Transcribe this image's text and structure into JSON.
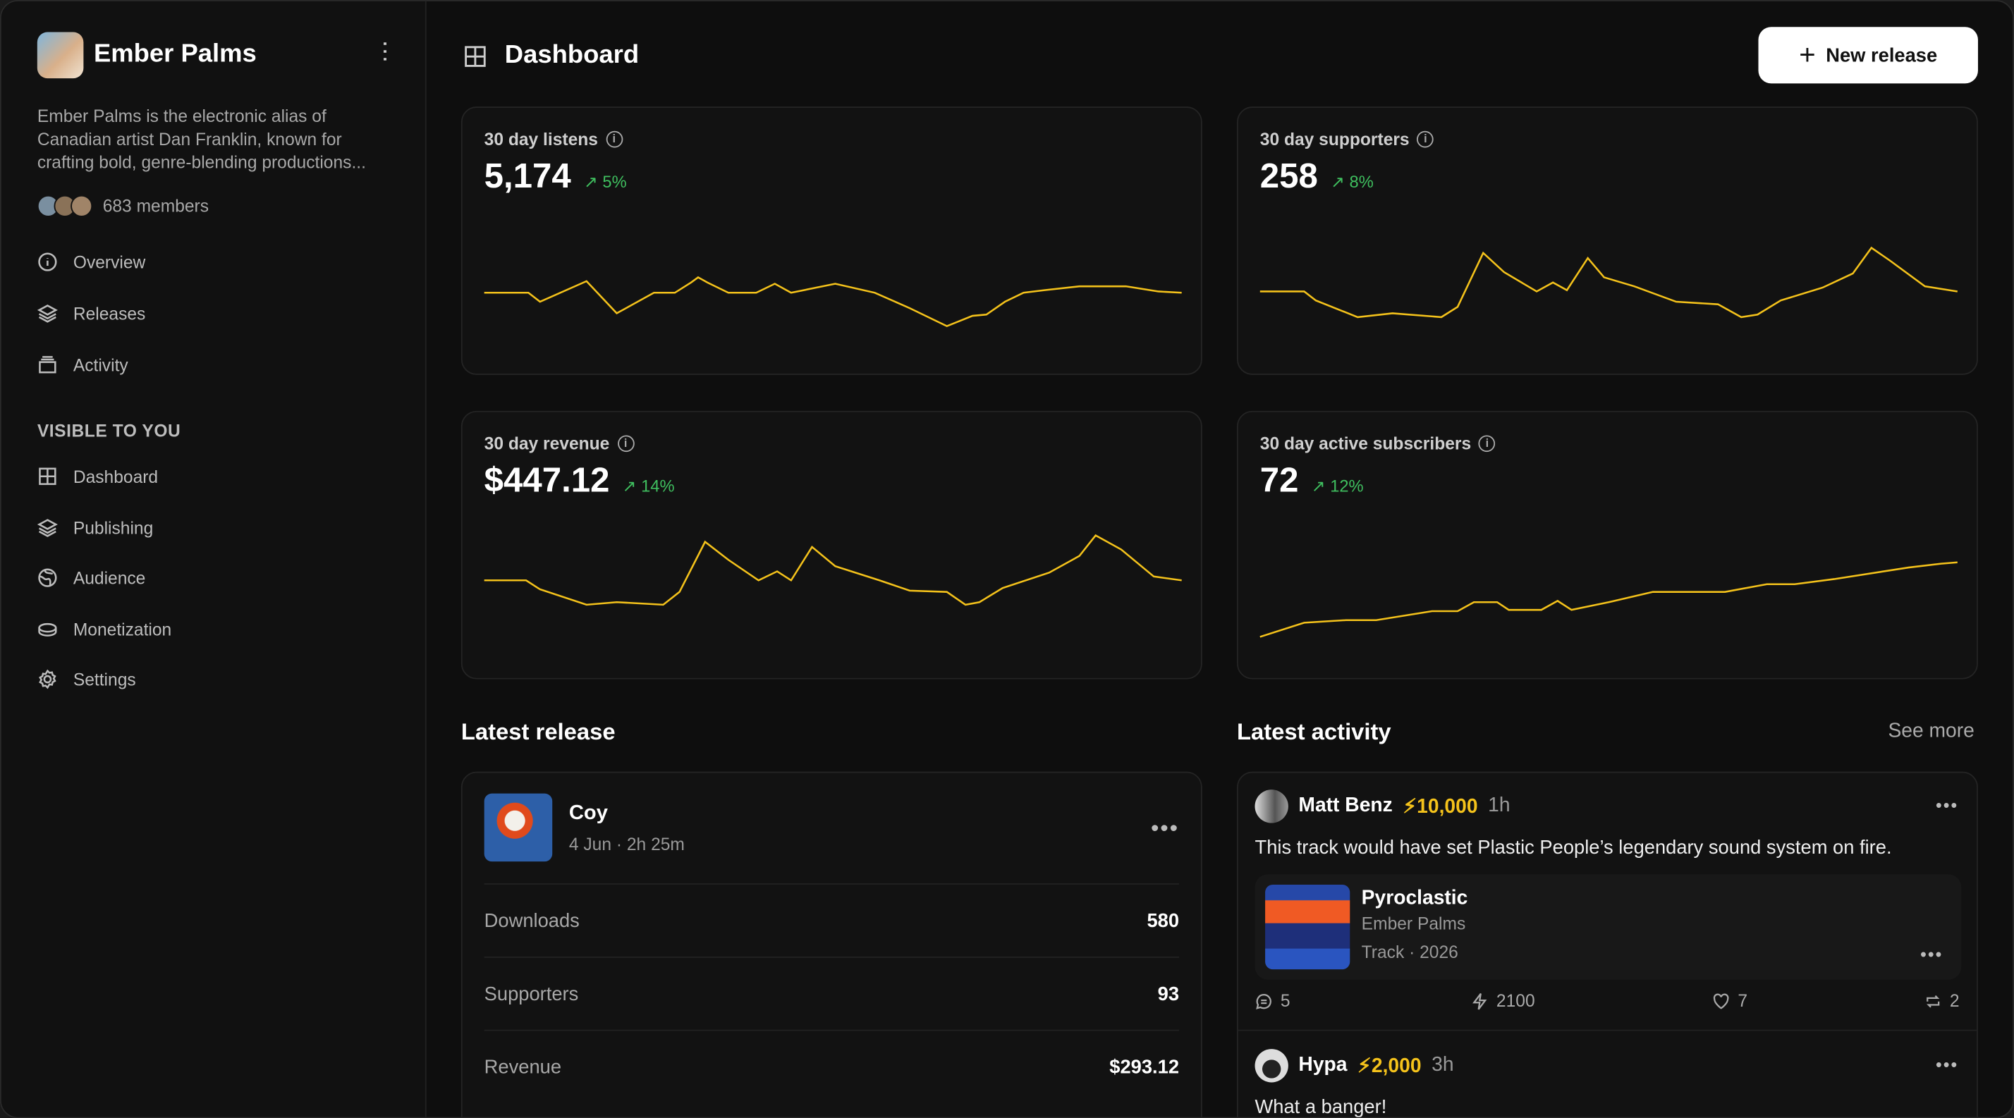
{
  "artist": {
    "name": "Ember Palms",
    "bio": "Ember Palms is the electronic alias of Canadian artist Dan Franklin, known for crafting bold, genre-blending productions...",
    "members": "683 members"
  },
  "nav": [
    {
      "label": "Overview",
      "icon": "info-icon"
    },
    {
      "label": "Releases",
      "icon": "layers-icon"
    },
    {
      "label": "Activity",
      "icon": "stack-icon"
    }
  ],
  "section_label": "VISIBLE TO YOU",
  "nav2": [
    {
      "label": "Dashboard",
      "icon": "grid-icon"
    },
    {
      "label": "Publishing",
      "icon": "layers-icon"
    },
    {
      "label": "Audience",
      "icon": "globe-icon"
    },
    {
      "label": "Monetization",
      "icon": "coin-icon"
    },
    {
      "label": "Settings",
      "icon": "gear-icon"
    }
  ],
  "header": {
    "title": "Dashboard",
    "new_release": "New release"
  },
  "accent": "#f4c21b",
  "positive": "#3fbf5f",
  "stats": [
    {
      "label": "30 day listens",
      "value": "5,174",
      "delta": "5%"
    },
    {
      "label": "30 day supporters",
      "value": "258",
      "delta": "8%"
    },
    {
      "label": "30 day revenue",
      "value": "$447.12",
      "delta": "14%"
    },
    {
      "label": "30 day active subscribers",
      "value": "72",
      "delta": "12%"
    }
  ],
  "chart_data": [
    {
      "type": "line",
      "title": "30 day listens",
      "x_unit": "day",
      "points": [
        [
          0,
          31
        ],
        [
          1.9,
          31
        ],
        [
          2.4,
          24
        ],
        [
          4.4,
          40
        ],
        [
          5.7,
          15
        ],
        [
          7.3,
          31
        ],
        [
          8.2,
          31
        ],
        [
          8.9,
          39
        ],
        [
          9.2,
          43
        ],
        [
          9.6,
          39
        ],
        [
          10.5,
          31
        ],
        [
          11.7,
          31
        ],
        [
          12.5,
          38
        ],
        [
          13.2,
          31
        ],
        [
          15.1,
          38
        ],
        [
          16.8,
          31
        ],
        [
          18.3,
          19
        ],
        [
          19.9,
          5
        ],
        [
          21,
          13
        ],
        [
          21.6,
          14
        ],
        [
          22.4,
          24
        ],
        [
          23.2,
          31
        ],
        [
          24.1,
          33
        ],
        [
          25.6,
          36
        ],
        [
          27.6,
          36
        ],
        [
          29,
          32
        ],
        [
          30,
          31
        ]
      ]
    },
    {
      "type": "line",
      "title": "30 day supporters",
      "x_unit": "day",
      "points": [
        [
          0,
          32
        ],
        [
          1.9,
          32
        ],
        [
          2.4,
          25
        ],
        [
          4.2,
          12
        ],
        [
          5.7,
          15
        ],
        [
          7.8,
          12
        ],
        [
          8.5,
          20
        ],
        [
          9.6,
          62
        ],
        [
          10.5,
          47
        ],
        [
          11.9,
          32
        ],
        [
          12.6,
          39
        ],
        [
          13.2,
          33
        ],
        [
          14.1,
          58
        ],
        [
          14.8,
          43
        ],
        [
          16.1,
          36
        ],
        [
          17.9,
          24
        ],
        [
          19.7,
          22
        ],
        [
          20.7,
          12
        ],
        [
          21.4,
          14
        ],
        [
          22.4,
          25
        ],
        [
          24.2,
          35
        ],
        [
          25.5,
          46
        ],
        [
          26.3,
          66
        ],
        [
          27.1,
          56
        ],
        [
          28.6,
          36
        ],
        [
          30,
          32
        ]
      ]
    },
    {
      "type": "line",
      "title": "30 day revenue",
      "x_unit": "day",
      "points": [
        [
          0,
          44
        ],
        [
          1.8,
          44
        ],
        [
          2.4,
          37
        ],
        [
          4.4,
          25
        ],
        [
          5.7,
          27
        ],
        [
          7.7,
          25
        ],
        [
          8.4,
          35
        ],
        [
          9.5,
          74
        ],
        [
          10.5,
          60
        ],
        [
          11.8,
          44
        ],
        [
          12.6,
          51
        ],
        [
          13.2,
          44
        ],
        [
          14.1,
          70
        ],
        [
          15.1,
          55
        ],
        [
          17,
          44
        ],
        [
          18.3,
          36
        ],
        [
          19.9,
          35
        ],
        [
          20.7,
          25
        ],
        [
          21.3,
          27
        ],
        [
          22.3,
          38
        ],
        [
          24.3,
          50
        ],
        [
          25.6,
          63
        ],
        [
          26.3,
          79
        ],
        [
          27.4,
          68
        ],
        [
          28.8,
          47
        ],
        [
          30,
          44
        ]
      ]
    },
    {
      "type": "line",
      "title": "30 day active subscribers",
      "x_unit": "day",
      "points": [
        [
          0,
          0
        ],
        [
          1.9,
          11
        ],
        [
          3.7,
          13
        ],
        [
          5,
          13
        ],
        [
          7.4,
          20
        ],
        [
          8.5,
          20
        ],
        [
          9.2,
          27
        ],
        [
          10.2,
          27
        ],
        [
          10.7,
          21
        ],
        [
          12.1,
          21
        ],
        [
          12.8,
          28
        ],
        [
          13.4,
          21
        ],
        [
          15,
          27
        ],
        [
          16.9,
          35
        ],
        [
          20,
          35
        ],
        [
          21.8,
          41
        ],
        [
          23,
          41
        ],
        [
          24.7,
          45
        ],
        [
          27.9,
          54
        ],
        [
          29.3,
          57
        ],
        [
          30,
          58
        ]
      ]
    }
  ],
  "latest_release": {
    "heading": "Latest release",
    "title": "Coy",
    "meta": "4 Jun · 2h 25m",
    "rows": [
      {
        "k": "Downloads",
        "v": "580"
      },
      {
        "k": "Supporters",
        "v": "93"
      },
      {
        "k": "Revenue",
        "v": "$293.12"
      }
    ]
  },
  "activity": {
    "heading": "Latest activity",
    "see_more": "See more",
    "items": [
      {
        "user": "Matt Benz",
        "zaps": "10,000",
        "ago": "1h",
        "text": "This track would have set Plastic People’s legendary sound system on fire.",
        "track": {
          "title": "Pyroclastic",
          "artist": "Ember Palms",
          "meta": "Track · 2026"
        },
        "comments": "5",
        "zap_total": "2100",
        "likes": "7",
        "reposts": "2"
      },
      {
        "user": "Hypa",
        "zaps": "2,000",
        "ago": "3h",
        "text": "What a banger!"
      }
    ]
  }
}
